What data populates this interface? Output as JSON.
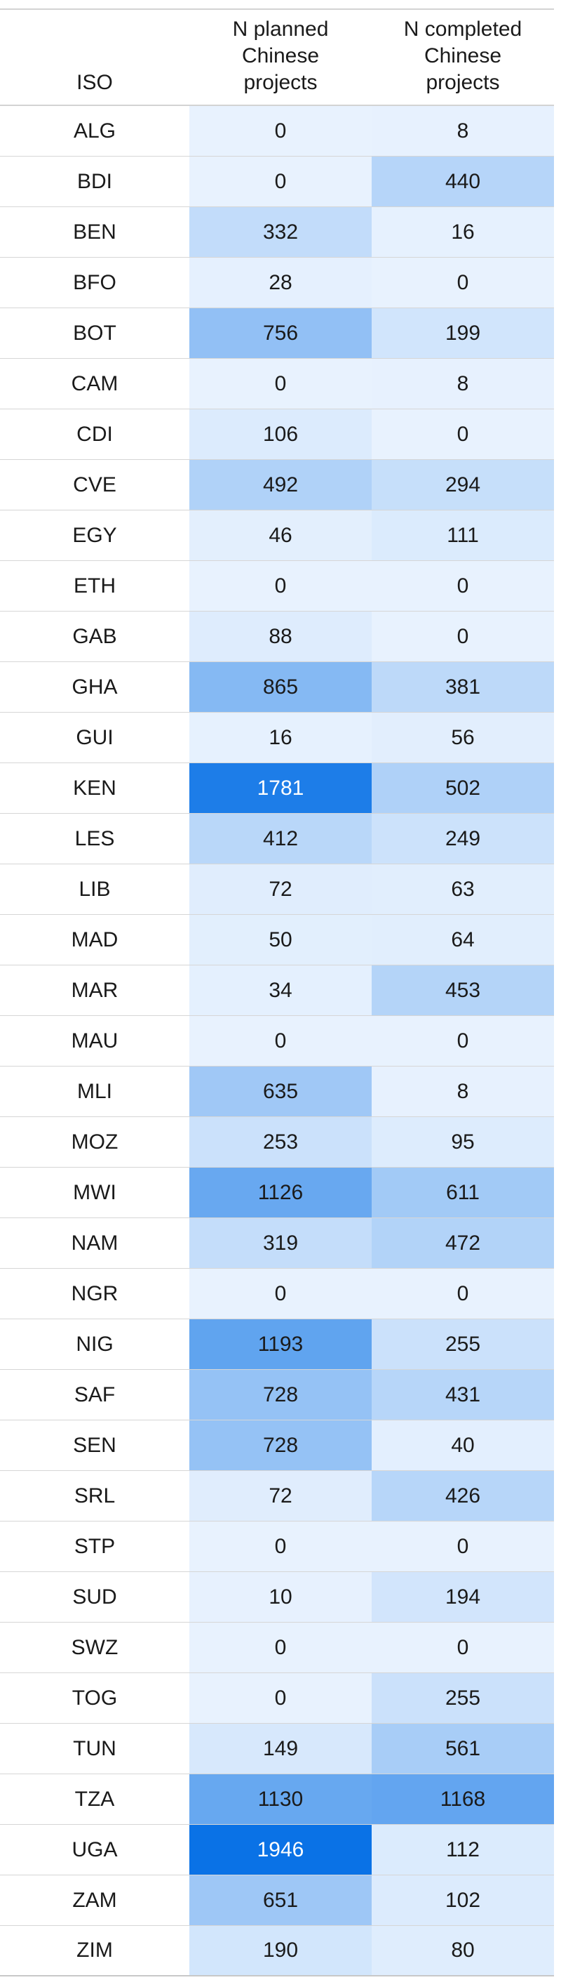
{
  "table": {
    "headers": {
      "iso": "ISO",
      "planned": "N planned\nChinese\nprojects",
      "completed": "N completed\nChinese\nprojects"
    },
    "color_scale": {
      "low": "#e8f2fe",
      "high": "#0a72e6",
      "max_value": 1946,
      "light_text": "#ffffff",
      "dark_text": "#1a1a1a"
    },
    "rows": [
      {
        "iso": "ALG",
        "planned": 0,
        "completed": 8
      },
      {
        "iso": "BDI",
        "planned": 0,
        "completed": 440
      },
      {
        "iso": "BEN",
        "planned": 332,
        "completed": 16
      },
      {
        "iso": "BFO",
        "planned": 28,
        "completed": 0
      },
      {
        "iso": "BOT",
        "planned": 756,
        "completed": 199
      },
      {
        "iso": "CAM",
        "planned": 0,
        "completed": 8
      },
      {
        "iso": "CDI",
        "planned": 106,
        "completed": 0
      },
      {
        "iso": "CVE",
        "planned": 492,
        "completed": 294
      },
      {
        "iso": "EGY",
        "planned": 46,
        "completed": 111
      },
      {
        "iso": "ETH",
        "planned": 0,
        "completed": 0
      },
      {
        "iso": "GAB",
        "planned": 88,
        "completed": 0
      },
      {
        "iso": "GHA",
        "planned": 865,
        "completed": 381
      },
      {
        "iso": "GUI",
        "planned": 16,
        "completed": 56
      },
      {
        "iso": "KEN",
        "planned": 1781,
        "completed": 502
      },
      {
        "iso": "LES",
        "planned": 412,
        "completed": 249
      },
      {
        "iso": "LIB",
        "planned": 72,
        "completed": 63
      },
      {
        "iso": "MAD",
        "planned": 50,
        "completed": 64
      },
      {
        "iso": "MAR",
        "planned": 34,
        "completed": 453
      },
      {
        "iso": "MAU",
        "planned": 0,
        "completed": 0
      },
      {
        "iso": "MLI",
        "planned": 635,
        "completed": 8
      },
      {
        "iso": "MOZ",
        "planned": 253,
        "completed": 95
      },
      {
        "iso": "MWI",
        "planned": 1126,
        "completed": 611
      },
      {
        "iso": "NAM",
        "planned": 319,
        "completed": 472
      },
      {
        "iso": "NGR",
        "planned": 0,
        "completed": 0
      },
      {
        "iso": "NIG",
        "planned": 1193,
        "completed": 255
      },
      {
        "iso": "SAF",
        "planned": 728,
        "completed": 431
      },
      {
        "iso": "SEN",
        "planned": 728,
        "completed": 40
      },
      {
        "iso": "SRL",
        "planned": 72,
        "completed": 426
      },
      {
        "iso": "STP",
        "planned": 0,
        "completed": 0
      },
      {
        "iso": "SUD",
        "planned": 10,
        "completed": 194
      },
      {
        "iso": "SWZ",
        "planned": 0,
        "completed": 0
      },
      {
        "iso": "TOG",
        "planned": 0,
        "completed": 255
      },
      {
        "iso": "TUN",
        "planned": 149,
        "completed": 561
      },
      {
        "iso": "TZA",
        "planned": 1130,
        "completed": 1168
      },
      {
        "iso": "UGA",
        "planned": 1946,
        "completed": 112
      },
      {
        "iso": "ZAM",
        "planned": 651,
        "completed": 102
      },
      {
        "iso": "ZIM",
        "planned": 190,
        "completed": 80
      }
    ]
  }
}
